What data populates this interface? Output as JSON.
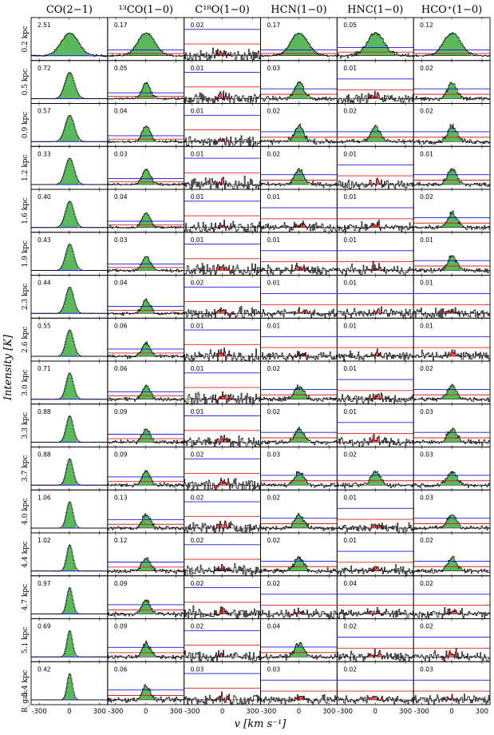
{
  "figure": {
    "ylabel": "Intensity [K]",
    "xlabel": "v [km s⁻¹]",
    "rgal_label": "R_gal:"
  },
  "colors": {
    "spectrum": "#000000",
    "detection_fill": "#5cb85c",
    "nondetection_fill": "#ff4d4d",
    "noise_line": "#e0201c",
    "threshold_line": "#1414e6",
    "baseline": "#000000"
  },
  "chart_data": {
    "type": "line",
    "description_grid": "16 rows (galactocentric radius) by 6 columns (molecular line)",
    "x_ticks": [
      -300,
      0,
      300
    ],
    "xlim": [
      -380,
      380
    ],
    "columns": [
      "CO(2−1)",
      "¹³CO(1−0)",
      "C¹⁸O(1−0)",
      "HCN(1−0)",
      "HNC(1−0)",
      "HCO⁺(1−0)"
    ],
    "rows": [
      "0.2 kpc",
      "0.5 kpc",
      "0.9 kpc",
      "1.2 kpc",
      "1.6 kpc",
      "1.9 kpc",
      "2.3 kpc",
      "2.6 kpc",
      "3.0 kpc",
      "3.3 kpc",
      "3.7 kpc",
      "4.0 kpc",
      "4.4 kpc",
      "4.7 kpc",
      "5.1 kpc",
      "5.4 kpc"
    ],
    "peaks": [
      [
        "2.51",
        "0.17",
        "0.02",
        "0.17",
        "0.05",
        "0.12"
      ],
      [
        "0.72",
        "0.05",
        "0.01",
        "0.03",
        "0.01",
        "0.02"
      ],
      [
        "0.57",
        "0.04",
        "0.01",
        "0.02",
        "0.02",
        "0.02"
      ],
      [
        "0.33",
        "0.03",
        "0.01",
        "0.02",
        "0.01",
        "0.01"
      ],
      [
        "0.40",
        "0.04",
        "0.01",
        "0.01",
        "0.01",
        "0.02"
      ],
      [
        "0.43",
        "0.03",
        "0.01",
        "0.01",
        "0.01",
        "0.01"
      ],
      [
        "0.44",
        "0.04",
        "0.02",
        "0.01",
        "0.01",
        "0.01"
      ],
      [
        "0.55",
        "0.06",
        "0.01",
        "0.01",
        "0.01",
        "0.01"
      ],
      [
        "0.71",
        "0.06",
        "0.01",
        "0.02",
        "0.01",
        "0.02"
      ],
      [
        "0.88",
        "0.09",
        "0.01",
        "0.02",
        "0.01",
        "0.03"
      ],
      [
        "0.88",
        "0.09",
        "0.02",
        "0.03",
        "0.02",
        "0.03"
      ],
      [
        "1.06",
        "0.13",
        "0.02",
        "0.02",
        "0.01",
        "0.03"
      ],
      [
        "1.02",
        "0.12",
        "0.02",
        "0.02",
        "0.01",
        "0.02"
      ],
      [
        "0.97",
        "0.09",
        "0.02",
        "0.02",
        "0.04",
        "0.02"
      ],
      [
        "0.69",
        "0.09",
        "0.02",
        "0.04",
        "0.02",
        "0.02"
      ],
      [
        "0.42",
        "0.06",
        "0.03",
        "0.03",
        "0.02",
        "0.03"
      ]
    ],
    "detected": [
      [
        true,
        true,
        false,
        true,
        true,
        true
      ],
      [
        true,
        true,
        false,
        true,
        false,
        true
      ],
      [
        true,
        true,
        false,
        true,
        true,
        true
      ],
      [
        true,
        true,
        false,
        true,
        false,
        true
      ],
      [
        true,
        true,
        false,
        false,
        false,
        true
      ],
      [
        true,
        true,
        false,
        false,
        false,
        true
      ],
      [
        true,
        true,
        false,
        false,
        false,
        false
      ],
      [
        true,
        true,
        false,
        false,
        false,
        false
      ],
      [
        true,
        true,
        false,
        true,
        false,
        true
      ],
      [
        true,
        true,
        false,
        true,
        false,
        true
      ],
      [
        true,
        true,
        false,
        true,
        true,
        true
      ],
      [
        true,
        true,
        false,
        true,
        false,
        true
      ],
      [
        true,
        true,
        false,
        true,
        false,
        true
      ],
      [
        true,
        true,
        false,
        false,
        false,
        false
      ],
      [
        true,
        true,
        false,
        true,
        false,
        false
      ],
      [
        true,
        true,
        false,
        false,
        false,
        false
      ]
    ]
  }
}
